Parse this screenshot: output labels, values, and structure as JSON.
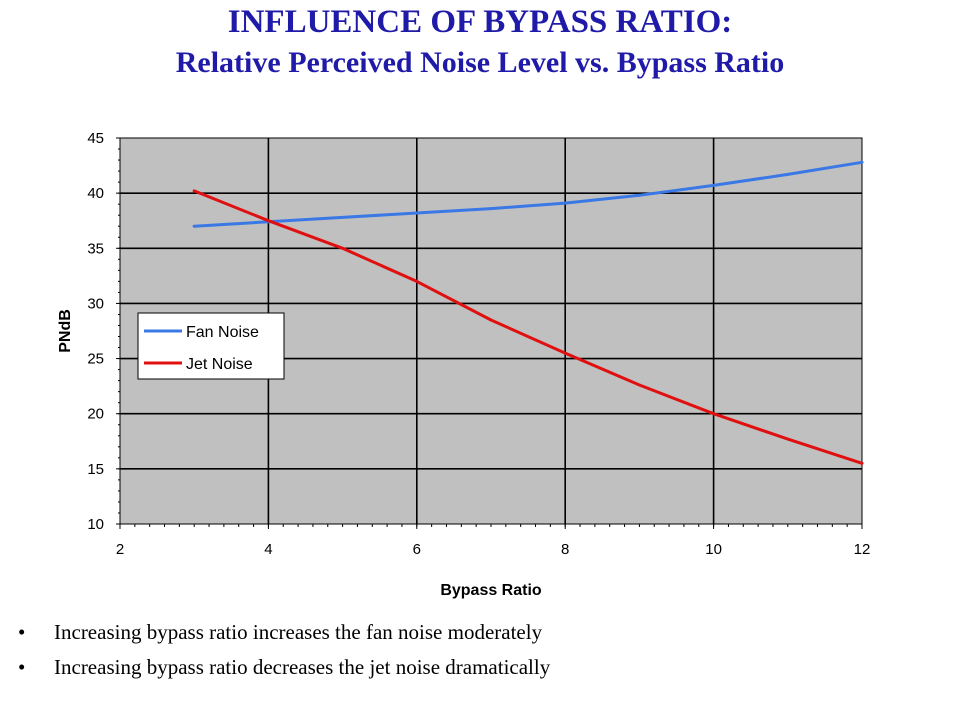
{
  "title": {
    "line1": "INFLUENCE OF BYPASS RATIO:",
    "line2": "Relative Perceived Noise Level vs. Bypass Ratio"
  },
  "colors": {
    "title": "#1f1aa8",
    "plot_bg": "#c0c0c0",
    "grid": "#000000",
    "fan": "#3a78e6",
    "jet": "#e01010"
  },
  "chart_data": {
    "type": "line",
    "xlabel": "Bypass Ratio",
    "ylabel": "PNdB",
    "xlim": [
      2,
      12
    ],
    "ylim": [
      10,
      45
    ],
    "x_ticks": [
      2,
      4,
      6,
      8,
      10,
      12
    ],
    "y_ticks": [
      10,
      15,
      20,
      25,
      30,
      35,
      40,
      45
    ],
    "grid": true,
    "legend_position": "left-center",
    "series": [
      {
        "name": "Fan Noise",
        "color": "#3a78e6",
        "x": [
          3,
          4,
          5,
          6,
          7,
          8,
          9,
          10,
          11,
          12
        ],
        "y": [
          37.0,
          37.4,
          37.8,
          38.2,
          38.6,
          39.1,
          39.8,
          40.7,
          41.7,
          42.8
        ]
      },
      {
        "name": "Jet Noise",
        "color": "#e01010",
        "x": [
          3,
          4,
          5,
          6,
          7,
          8,
          9,
          10,
          11,
          12
        ],
        "y": [
          40.2,
          37.5,
          35.0,
          32.0,
          28.5,
          25.5,
          22.6,
          20.0,
          17.7,
          15.5
        ]
      }
    ]
  },
  "bullets": {
    "glyph": "•",
    "items": [
      "Increasing bypass ratio increases the fan noise moderately",
      "Increasing bypass ratio decreases the jet noise dramatically"
    ]
  }
}
